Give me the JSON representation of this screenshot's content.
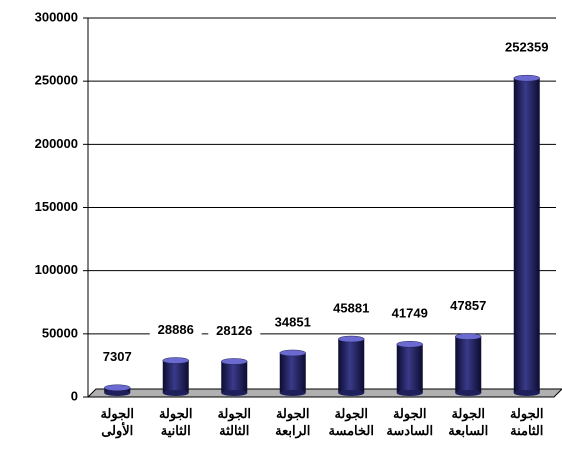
{
  "chart_data": {
    "type": "bar",
    "categories": [
      "الجولة الأولى",
      "الجولة الثانية",
      "الجولة الثالثة",
      "الجولة الرابعة",
      "الجولة الخامسة",
      "الجولة السادسة",
      "الجولة السابعة",
      "الجولة الثامنة"
    ],
    "values": [
      7307,
      28886,
      28126,
      34851,
      45881,
      41749,
      47857,
      252359
    ],
    "color": "#1f1f5c",
    "ylim": [
      0,
      300000
    ],
    "yticks": [
      0,
      50000,
      100000,
      150000,
      200000,
      250000,
      300000
    ],
    "grid": true
  }
}
